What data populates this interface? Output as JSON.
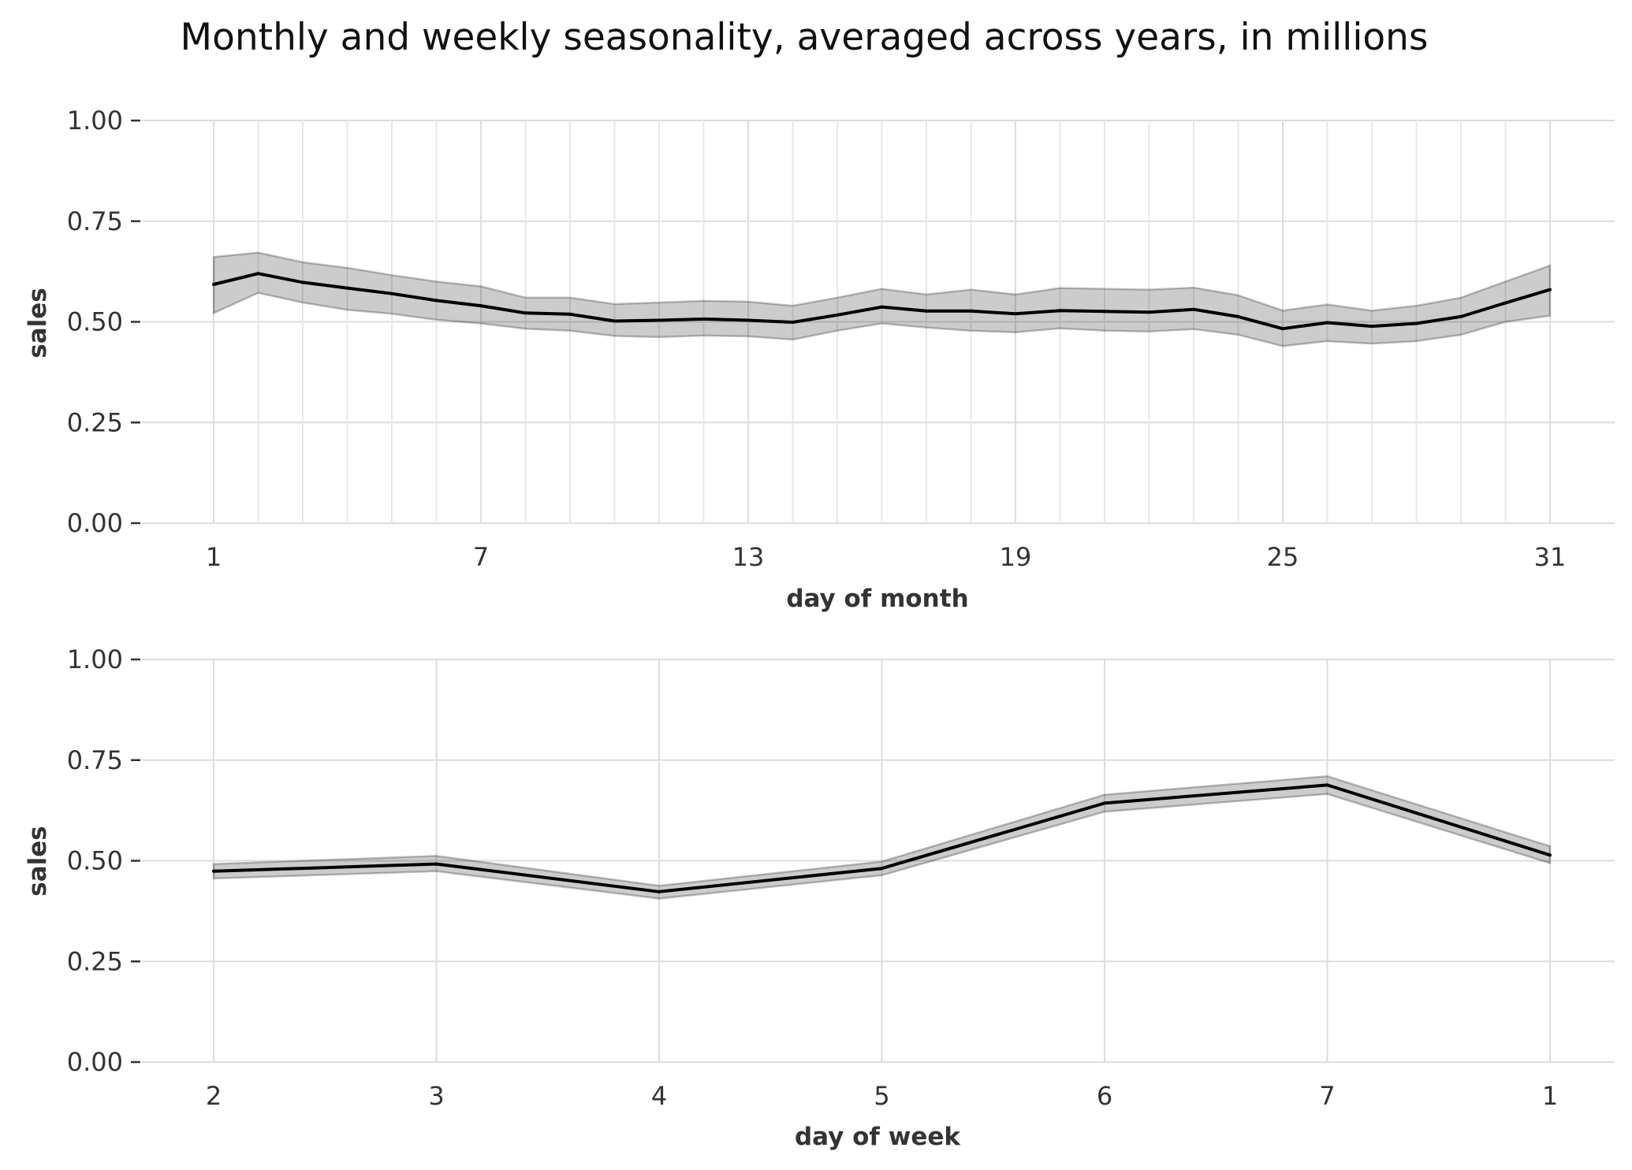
{
  "title": "Monthly and weekly seasonality, averaged across years, in millions",
  "colors": {
    "line": "#000000",
    "band": "#cccccc",
    "grid": "#dddddd",
    "text": "#333333"
  },
  "chart_data": [
    {
      "type": "line",
      "xlabel": "day of month",
      "ylabel": "sales",
      "ylim": [
        0,
        1
      ],
      "yticks": [
        "0.00",
        "0.25",
        "0.50",
        "0.75",
        "1.00"
      ],
      "xticks": [
        "1",
        "7",
        "13",
        "19",
        "25",
        "31"
      ],
      "grid": true,
      "x": [
        1,
        2,
        3,
        4,
        5,
        6,
        7,
        8,
        9,
        10,
        11,
        12,
        13,
        14,
        15,
        16,
        17,
        18,
        19,
        20,
        21,
        22,
        23,
        24,
        25,
        26,
        27,
        28,
        29,
        30,
        31
      ],
      "series": [
        {
          "values": [
            0.593,
            0.62,
            0.598,
            0.584,
            0.57,
            0.553,
            0.54,
            0.522,
            0.519,
            0.502,
            0.504,
            0.507,
            0.504,
            0.499,
            0.517,
            0.537,
            0.527,
            0.527,
            0.52,
            0.528,
            0.526,
            0.524,
            0.531,
            0.513,
            0.483,
            0.498,
            0.489,
            0.496,
            0.513,
            0.547,
            0.58
          ],
          "upper": [
            0.661,
            0.672,
            0.648,
            0.634,
            0.616,
            0.6,
            0.588,
            0.56,
            0.56,
            0.544,
            0.548,
            0.552,
            0.55,
            0.54,
            0.56,
            0.582,
            0.568,
            0.58,
            0.568,
            0.584,
            0.582,
            0.58,
            0.585,
            0.566,
            0.528,
            0.543,
            0.528,
            0.54,
            0.56,
            0.6,
            0.64
          ],
          "lower": [
            0.522,
            0.572,
            0.548,
            0.53,
            0.52,
            0.505,
            0.496,
            0.483,
            0.478,
            0.465,
            0.462,
            0.466,
            0.464,
            0.456,
            0.478,
            0.496,
            0.486,
            0.478,
            0.474,
            0.484,
            0.478,
            0.476,
            0.482,
            0.468,
            0.44,
            0.452,
            0.446,
            0.452,
            0.468,
            0.5,
            0.515
          ]
        }
      ]
    },
    {
      "type": "line",
      "xlabel": "day of week",
      "ylabel": "sales",
      "ylim": [
        0,
        1
      ],
      "yticks": [
        "0.00",
        "0.25",
        "0.50",
        "0.75",
        "1.00"
      ],
      "categories": [
        "2",
        "3",
        "4",
        "5",
        "6",
        "7",
        "1"
      ],
      "grid": true,
      "series": [
        {
          "values": [
            0.474,
            0.492,
            0.423,
            0.481,
            0.643,
            0.688,
            0.514
          ],
          "upper": [
            0.492,
            0.512,
            0.438,
            0.498,
            0.664,
            0.71,
            0.536
          ],
          "lower": [
            0.456,
            0.474,
            0.406,
            0.464,
            0.622,
            0.666,
            0.494
          ]
        }
      ]
    }
  ]
}
